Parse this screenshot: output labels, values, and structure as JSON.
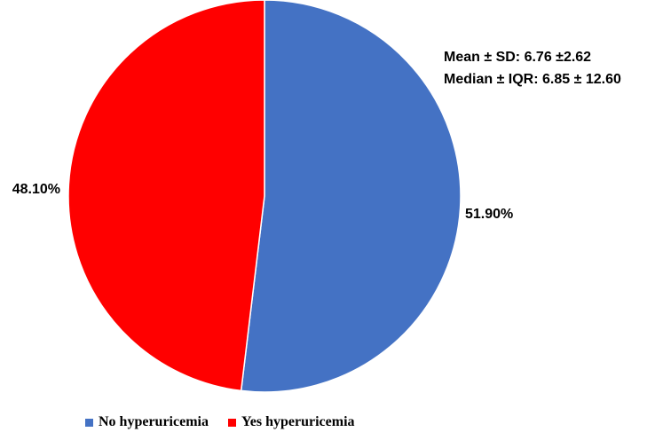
{
  "chart_data": {
    "type": "pie",
    "slices": [
      {
        "label": "No hyperuricemia",
        "value": 51.9,
        "display": "51.90%",
        "color": "#4472C4"
      },
      {
        "label": "Yes hyperuricemia",
        "value": 48.1,
        "display": "48.10%",
        "color": "#FF0000"
      }
    ],
    "start_angle": "12 o'clock",
    "direction": "clockwise",
    "legend_placement": "bottom",
    "annotations": [
      "Mean ± SD: 6.76 ±2.62",
      "Median ± IQR: 6.85 ± 12.60"
    ]
  }
}
